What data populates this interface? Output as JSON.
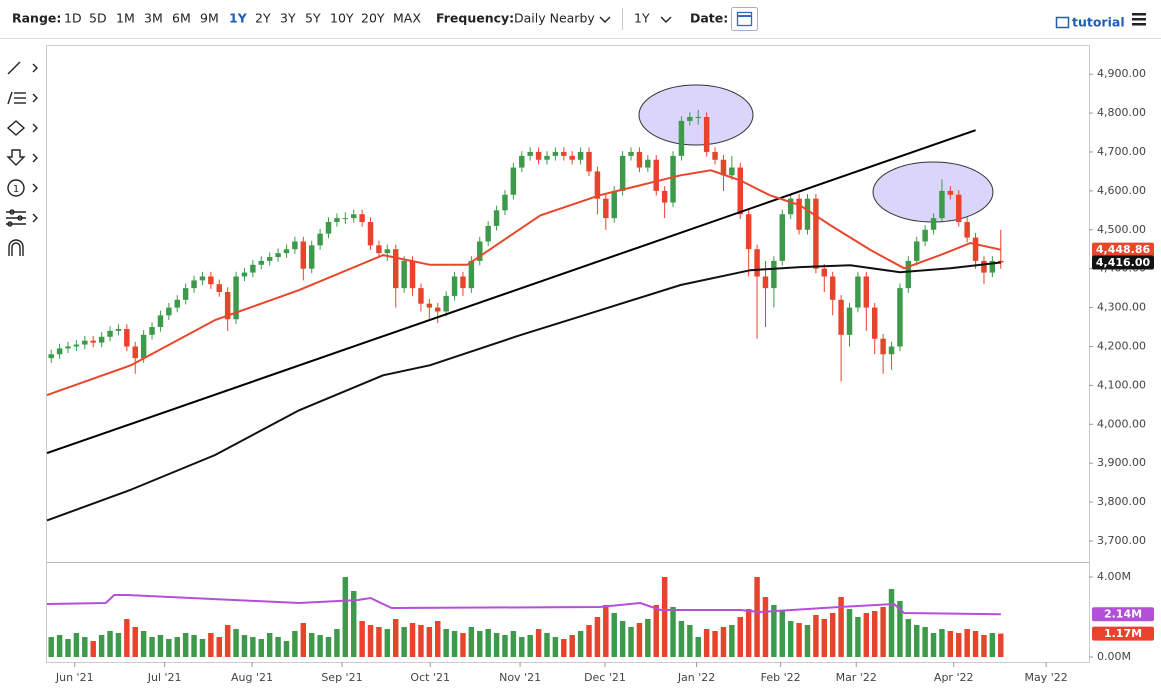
{
  "toolbar": {
    "range_label": "Range:",
    "ranges": [
      "1D",
      "5D",
      "1M",
      "3M",
      "6M",
      "9M",
      "1Y",
      "2Y",
      "3Y",
      "5Y",
      "10Y",
      "20Y",
      "MAX"
    ],
    "active_range": "1Y",
    "frequency_label": "Frequency:",
    "frequency": "Daily Nearby",
    "period": "1Y",
    "date_label": "Date:",
    "tutorial": "tutorial"
  },
  "chart_data": [
    {
      "type": "candlestick",
      "colors": {
        "up": "#3d9a4b",
        "down": "#e8432c"
      },
      "open": [
        4170,
        4180,
        4195,
        4200,
        4205,
        4215,
        4210,
        4225,
        4240,
        4245,
        4200,
        4170,
        4230,
        4250,
        4280,
        4300,
        4320,
        4350,
        4370,
        4380,
        4360,
        4340,
        4270,
        4380,
        4390,
        4410,
        4420,
        4430,
        4440,
        4450,
        4470,
        4400,
        4460,
        4490,
        4520,
        4530,
        4530,
        4540,
        4520,
        4460,
        4440,
        4450,
        4350,
        4420,
        4350,
        4310,
        4300,
        4290,
        4330,
        4380,
        4350,
        4420,
        4470,
        4510,
        4550,
        4590,
        4660,
        4690,
        4700,
        4680,
        4690,
        4700,
        4690,
        4680,
        4700,
        4650,
        4580,
        4530,
        4600,
        4690,
        4700,
        4660,
        4680,
        4600,
        4570,
        4690,
        4780,
        4790,
        4790,
        4700,
        4680,
        4640,
        4660,
        4540,
        4450,
        4380,
        4350,
        4420,
        4540,
        4580,
        4500,
        4580,
        4400,
        4380,
        4320,
        4230,
        4300,
        4380,
        4300,
        4220,
        4180,
        4200,
        4350,
        4420,
        4470,
        4500,
        4530,
        4600,
        4590,
        4520,
        4480,
        4420,
        4390,
        4420
      ],
      "high": [
        4192,
        4207,
        4212,
        4217,
        4227,
        4227,
        4237,
        4252,
        4257,
        4257,
        4212,
        4242,
        4262,
        4292,
        4312,
        4332,
        4362,
        4382,
        4392,
        4392,
        4372,
        4352,
        4392,
        4402,
        4422,
        4432,
        4442,
        4452,
        4462,
        4482,
        4482,
        4472,
        4502,
        4532,
        4542,
        4545,
        4552,
        4552,
        4532,
        4472,
        4462,
        4462,
        4432,
        4432,
        4362,
        4322,
        4312,
        4342,
        4392,
        4392,
        4432,
        4482,
        4522,
        4562,
        4602,
        4672,
        4702,
        4712,
        4712,
        4702,
        4712,
        4712,
        4702,
        4712,
        4712,
        4662,
        4592,
        4612,
        4702,
        4712,
        4712,
        4692,
        4692,
        4612,
        4702,
        4792,
        4802,
        4808,
        4802,
        4712,
        4692,
        4690,
        4672,
        4552,
        4462,
        4420,
        4432,
        4552,
        4592,
        4592,
        4592,
        4592,
        4412,
        4392,
        4332,
        4312,
        4392,
        4392,
        4312,
        4232,
        4212,
        4362,
        4432,
        4482,
        4512,
        4542,
        4630,
        4612,
        4602,
        4532,
        4492,
        4432,
        4432,
        4500
      ],
      "low": [
        4158,
        4168,
        4183,
        4188,
        4193,
        4198,
        4198,
        4213,
        4228,
        4188,
        4130,
        4158,
        4218,
        4238,
        4268,
        4288,
        4308,
        4338,
        4358,
        4348,
        4328,
        4240,
        4258,
        4368,
        4378,
        4398,
        4408,
        4418,
        4428,
        4438,
        4370,
        4388,
        4448,
        4478,
        4508,
        4515,
        4518,
        4508,
        4448,
        4428,
        4420,
        4300,
        4338,
        4330,
        4290,
        4270,
        4260,
        4278,
        4318,
        4330,
        4338,
        4408,
        4458,
        4498,
        4538,
        4578,
        4648,
        4678,
        4668,
        4668,
        4678,
        4678,
        4668,
        4668,
        4638,
        4540,
        4500,
        4518,
        4588,
        4678,
        4648,
        4648,
        4588,
        4530,
        4558,
        4678,
        4768,
        4770,
        4688,
        4668,
        4600,
        4628,
        4528,
        4380,
        4220,
        4250,
        4300,
        4408,
        4528,
        4488,
        4488,
        4388,
        4340,
        4280,
        4110,
        4200,
        4288,
        4240,
        4180,
        4130,
        4140,
        4188,
        4338,
        4408,
        4458,
        4488,
        4518,
        4578,
        4508,
        4468,
        4400,
        4360,
        4378,
        4400
      ],
      "close": [
        4180,
        4195,
        4200,
        4205,
        4215,
        4210,
        4225,
        4240,
        4245,
        4200,
        4170,
        4230,
        4250,
        4280,
        4300,
        4320,
        4350,
        4370,
        4380,
        4360,
        4340,
        4270,
        4380,
        4390,
        4410,
        4420,
        4430,
        4440,
        4450,
        4470,
        4400,
        4460,
        4490,
        4520,
        4530,
        4530,
        4540,
        4520,
        4460,
        4440,
        4450,
        4350,
        4420,
        4350,
        4310,
        4300,
        4290,
        4330,
        4380,
        4350,
        4420,
        4470,
        4510,
        4550,
        4590,
        4660,
        4690,
        4700,
        4680,
        4690,
        4700,
        4690,
        4680,
        4700,
        4650,
        4580,
        4530,
        4600,
        4690,
        4700,
        4660,
        4680,
        4600,
        4570,
        4690,
        4780,
        4790,
        4790,
        4700,
        4680,
        4640,
        4660,
        4540,
        4450,
        4380,
        4350,
        4420,
        4540,
        4580,
        4500,
        4580,
        4400,
        4380,
        4320,
        4230,
        4300,
        4380,
        4300,
        4220,
        4180,
        4200,
        4350,
        4420,
        4470,
        4500,
        4530,
        4600,
        4590,
        4520,
        4480,
        4420,
        4390,
        4420,
        4416
      ],
      "lines": [
        {
          "color": "#e8472a",
          "x": [
            0,
            10,
            20,
            30,
            40,
            45.6,
            50,
            58.7,
            65.8,
            75.4,
            79,
            82.5,
            86,
            89.6,
            93.2,
            98,
            102,
            106.3,
            109.9,
            113.5
          ],
          "values": [
            4075,
            4152,
            4268,
            4345,
            4435,
            4410,
            4410,
            4537,
            4589,
            4640,
            4653,
            4627,
            4589,
            4563,
            4512,
            4448,
            4401,
            4435,
            4466,
            4448.86
          ],
          "label": {
            "value": 4448.86,
            "label": "4,448.86"
          }
        },
        {
          "color": "#111111",
          "x": [
            0,
            9.9,
            20,
            30,
            40,
            45.6,
            56.3,
            65.8,
            75.4,
            83.7,
            89.6,
            95.6,
            101.5,
            107.5,
            113.5
          ],
          "values": [
            3753,
            3831,
            3921,
            4036,
            4126,
            4152,
            4229,
            4293,
            4358,
            4396,
            4404,
            4409,
            4391,
            4401,
            4416
          ],
          "label": {
            "value": 4416,
            "label": "4,416.00"
          }
        }
      ],
      "trendline": {
        "color": "#000000",
        "x": [
          0,
          110.5
        ],
        "values": [
          3926,
          4756
        ]
      },
      "xlim": [
        0,
        124
      ],
      "ylim": [
        3646,
        4975
      ],
      "yticks": [
        {
          "value": 3700,
          "label": "3,700.00"
        },
        {
          "value": 3800,
          "label": "3,800.00"
        },
        {
          "value": 3900,
          "label": "3,900.00"
        },
        {
          "value": 4000,
          "label": "4,000.00"
        },
        {
          "value": 4100,
          "label": "4,100.00"
        },
        {
          "value": 4200,
          "label": "4,200.00"
        },
        {
          "value": 4300,
          "label": "4,300.00"
        },
        {
          "value": 4400,
          "label": "4,400.00"
        },
        {
          "value": 4500,
          "label": "4,500.00"
        },
        {
          "value": 4600,
          "label": "4,600.00"
        },
        {
          "value": 4700,
          "label": "4,700.00"
        },
        {
          "value": 4800,
          "label": "4,800.00"
        },
        {
          "value": 4900,
          "label": "4,900.00"
        }
      ],
      "xticks": [
        {
          "value": 3.3,
          "label": "Jun '21"
        },
        {
          "value": 14,
          "label": "Jul '21"
        },
        {
          "value": 24.4,
          "label": "Aug '21"
        },
        {
          "value": 35.1,
          "label": "Sep '21"
        },
        {
          "value": 45.6,
          "label": "Oct '21"
        },
        {
          "value": 56.3,
          "label": "Nov '21"
        },
        {
          "value": 66.4,
          "label": "Dec '21"
        },
        {
          "value": 77.3,
          "label": "Jan '22"
        },
        {
          "value": 87.3,
          "label": "Feb '22"
        },
        {
          "value": 96.3,
          "label": "Mar '22"
        },
        {
          "value": 107.9,
          "label": "Apr '22"
        },
        {
          "value": 118.9,
          "label": "May '22"
        }
      ]
    },
    {
      "type": "bar",
      "values": [
        1.0,
        1.1,
        0.9,
        1.2,
        1.0,
        0.8,
        1.1,
        1.3,
        1.2,
        1.9,
        1.5,
        1.3,
        1.0,
        1.1,
        0.9,
        1.0,
        1.2,
        1.1,
        0.9,
        1.2,
        1.0,
        1.6,
        1.4,
        1.1,
        1.0,
        0.9,
        1.2,
        1.0,
        0.8,
        1.3,
        1.7,
        1.2,
        1.1,
        1.0,
        1.4,
        4.0,
        3.3,
        1.8,
        1.6,
        1.5,
        1.4,
        1.9,
        1.5,
        1.7,
        1.6,
        1.5,
        1.8,
        1.4,
        1.3,
        1.2,
        1.5,
        1.3,
        1.4,
        1.2,
        1.1,
        1.3,
        1.0,
        1.1,
        1.4,
        1.2,
        1.0,
        0.9,
        1.1,
        1.3,
        1.6,
        2.0,
        2.6,
        2.2,
        1.8,
        1.5,
        1.7,
        1.9,
        2.6,
        4.0,
        2.5,
        1.8,
        1.6,
        1.0,
        1.4,
        1.3,
        1.5,
        1.6,
        2.0,
        2.4,
        4.0,
        3.0,
        2.6,
        2.3,
        1.8,
        1.7,
        1.6,
        2.1,
        1.9,
        2.2,
        3.0,
        2.4,
        2.0,
        2.2,
        2.3,
        2.5,
        3.4,
        2.8,
        1.9,
        1.6,
        1.5,
        1.2,
        1.4,
        1.3,
        1.2,
        1.4,
        1.3,
        1.1,
        1.2,
        1.17
      ],
      "last_label": {
        "value": 1.17,
        "label": "1.17M",
        "color": "#e8432c"
      },
      "lines": [
        {
          "color": "#b44fd8",
          "x": [
            0,
            7,
            8,
            9.5,
            30,
            37,
            38.5,
            41,
            65.8,
            70.6,
            73,
            82.5,
            84.8,
            94.3,
            100.8,
            102,
            113.5
          ],
          "values": [
            2.65,
            2.7,
            3.1,
            3.1,
            2.7,
            2.85,
            2.95,
            2.45,
            2.5,
            2.7,
            2.35,
            2.35,
            2.25,
            2.5,
            2.65,
            2.2,
            2.14
          ],
          "label": {
            "value": 2.14,
            "label": "2.14M"
          }
        }
      ],
      "xlim": [
        0,
        124
      ],
      "ylim": [
        -0.25,
        4.75
      ],
      "yticks": [
        {
          "value": 4,
          "label": "4.00M"
        },
        {
          "value": 0,
          "label": "0.00M"
        }
      ]
    }
  ]
}
